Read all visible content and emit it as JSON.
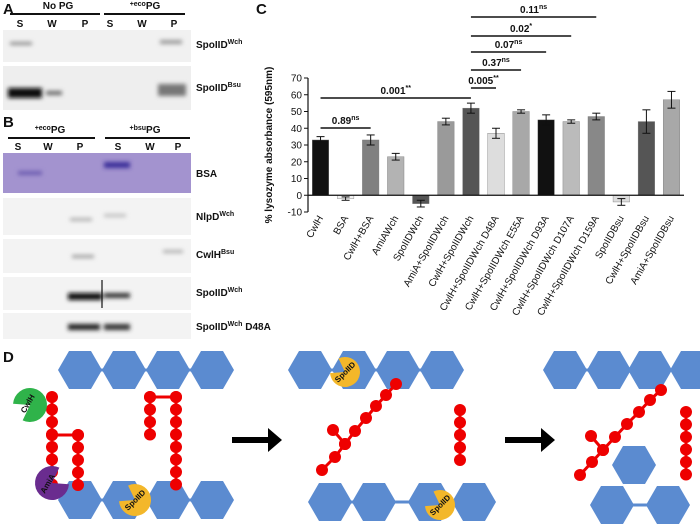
{
  "panel_a": {
    "label": "A",
    "header_1": "No PG",
    "header_2": {
      "sup": "+eco",
      "text": "PG"
    },
    "lanes": [
      "S",
      "W",
      "P",
      "S",
      "W",
      "P"
    ],
    "blots": [
      {
        "text": "SpoIID",
        "sup": "Wch"
      },
      {
        "text": "SpoIID",
        "sup": "Bsu"
      }
    ]
  },
  "panel_b": {
    "label": "B",
    "header_1": {
      "sup": "+eco",
      "text": "PG"
    },
    "header_2": {
      "sup": "+bsu",
      "text": "PG"
    },
    "lanes": [
      "S",
      "W",
      "P",
      "S",
      "W",
      "P"
    ],
    "blots": [
      {
        "text": "BSA"
      },
      {
        "text": "NlpD",
        "sup": "Wch"
      },
      {
        "text": "CwlH",
        "sup": "Bsu"
      },
      {
        "text": "SpoIID",
        "sup": "Wch"
      },
      {
        "text": "SpoIID",
        "sup": "Wch",
        "after": " D48A"
      }
    ]
  },
  "chart_data": {
    "type": "bar",
    "panel_label": "C",
    "y_label": "% lysozyme absorbance (595nm)",
    "categories": [
      "CwlH",
      "BSA",
      "CwlH+BSA",
      "AmiAWch",
      "SpoIIDWch",
      "AmiA+SpoIIDWch",
      "CwlH+SpoIIDWch",
      "CwlH+SpoIIDWch D48A",
      "CwlH+SpoIIDWch E55A",
      "CwlH+SpoIIDWch D93A",
      "CwlH+SpoIIDWch D107A",
      "CwlH+SpoIIDWch D159A",
      "SpoIIDBsu",
      "CwlH+SpoIIDBsu",
      "AmiA+SpoIIDBsu"
    ],
    "values": [
      33,
      -2,
      33,
      23,
      -5,
      44,
      52,
      37,
      50,
      45,
      44,
      47,
      -4,
      44,
      57
    ],
    "errors": [
      2,
      1,
      3,
      2,
      2,
      2,
      3,
      3,
      1,
      3,
      1,
      2,
      2,
      7,
      5
    ],
    "colors": [
      "#111111",
      "#f2f2f2",
      "#808080",
      "#b3b3b3",
      "#555555",
      "#9a9a9a",
      "#555555",
      "#dddddd",
      "#a8a8a8",
      "#111111",
      "#bbbbbb",
      "#888888",
      "#dddddd",
      "#555555",
      "#a8a8a8"
    ],
    "ylim": [
      -10,
      70
    ],
    "yticks": [
      -10,
      0,
      10,
      20,
      30,
      40,
      50,
      60,
      70
    ],
    "annotations": [
      {
        "p": "0.89",
        "sig": "ns",
        "from": 0,
        "to": 2
      },
      {
        "p": "0.001",
        "sig": "**",
        "from": 0,
        "to": 6
      },
      {
        "p": "0.005",
        "sig": "**",
        "from": 6,
        "to": 7
      },
      {
        "p": "0.37",
        "sig": "ns",
        "from": 6,
        "to": 8
      },
      {
        "p": "0.07",
        "sig": "ns",
        "from": 6,
        "to": 9
      },
      {
        "p": "0.02",
        "sig": "*",
        "from": 6,
        "to": 10
      },
      {
        "p": "0.11",
        "sig": "ns",
        "from": 6,
        "to": 11
      }
    ]
  },
  "panel_d": {
    "label": "D",
    "cwlh": "CwlH",
    "amia": "AmiA",
    "spoiid": [
      "SpoIID",
      "SpoIID",
      "SpoIID"
    ]
  }
}
